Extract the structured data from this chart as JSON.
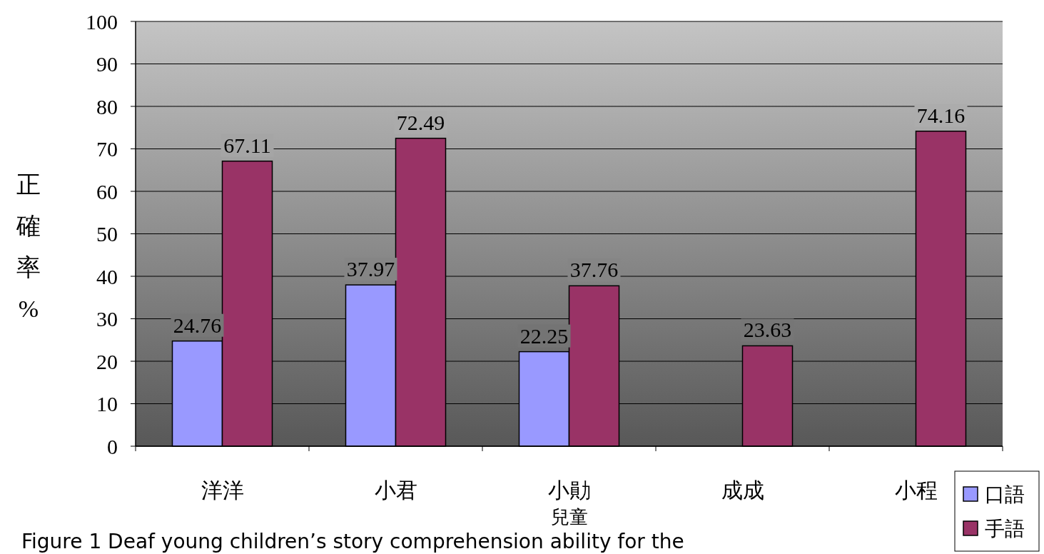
{
  "chart_data": {
    "type": "bar",
    "categories": [
      "洋洋",
      "小君",
      "小勛",
      "成成",
      "小程"
    ],
    "xlabel": "兒童",
    "ylabel": "正確率%",
    "series": [
      {
        "name": "口語",
        "color": "#9999ff",
        "values": [
          24.76,
          37.97,
          22.25,
          null,
          null
        ]
      },
      {
        "name": "手語",
        "color": "#993366",
        "values": [
          67.11,
          72.49,
          37.76,
          23.63,
          74.16
        ]
      }
    ],
    "ylim": [
      0,
      100
    ],
    "yticks": [
      0,
      10,
      20,
      30,
      40,
      50,
      60,
      70,
      80,
      90,
      100
    ],
    "grid": "y",
    "data_labels": true,
    "legend": "bottom right",
    "annotations": [
      "Figure 1 Deaf young children’s story comprehension ability for the"
    ]
  }
}
